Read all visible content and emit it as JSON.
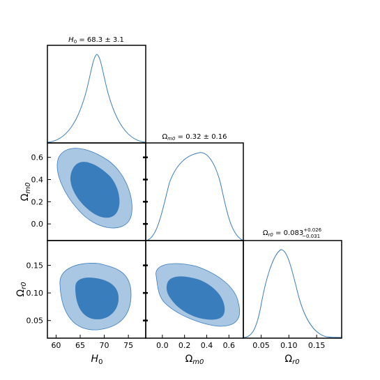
{
  "chart_data": {
    "type": "corner",
    "parameters": [
      {
        "id": "H0",
        "label_base": "H",
        "label_sub": "0"
      },
      {
        "id": "Om",
        "label_base": "Ω",
        "label_sub": "m0"
      },
      {
        "id": "Or",
        "label_base": "Ω",
        "label_sub": "r0"
      }
    ],
    "titles": [
      {
        "prefix": "H",
        "sub": "0",
        "value": " = 68.3 ± 3.1"
      },
      {
        "prefix": "Ω",
        "sub": "m0",
        "value": " = 0.32 ± 0.16"
      },
      {
        "prefix": "Ω",
        "sub": "r0",
        "value": " = 0.083",
        "upper": "+0.026",
        "lower": "−0.031"
      }
    ],
    "ranges": {
      "H0": [
        58.2,
        78.6
      ],
      "Om": [
        -0.15,
        0.73
      ],
      "Or": [
        0.018,
        0.195
      ]
    },
    "ticks": {
      "H0": [
        "60",
        "65",
        "70",
        "75"
      ],
      "Om_x": [
        "0.0",
        "0.2",
        "0.4",
        "0.6"
      ],
      "Om_y": [
        "0.0",
        "0.2",
        "0.4",
        "0.6"
      ],
      "Or_x": [
        "0.05",
        "0.10",
        "0.15"
      ],
      "Or_y": [
        "0.05",
        "0.10",
        "0.15"
      ]
    },
    "marginals": [
      {
        "param": "H0",
        "mean": 68.3,
        "sigma": 3.1
      },
      {
        "param": "Om",
        "mean": 0.32,
        "sigma": 0.16
      },
      {
        "param": "Or",
        "mean": 0.083,
        "sigma_upper": 0.026,
        "sigma_lower": 0.031
      }
    ],
    "contours": [
      {
        "x": "H0",
        "y": "Om",
        "levels": [
          "68%",
          "95%"
        ]
      },
      {
        "x": "H0",
        "y": "Or",
        "levels": [
          "68%",
          "95%"
        ]
      },
      {
        "x": "Om",
        "y": "Or",
        "levels": [
          "68%",
          "95%"
        ]
      }
    ],
    "colors": {
      "line": "#3a7dc0",
      "inner": "#3a7dbc",
      "outer": "#a9c6e2"
    }
  }
}
